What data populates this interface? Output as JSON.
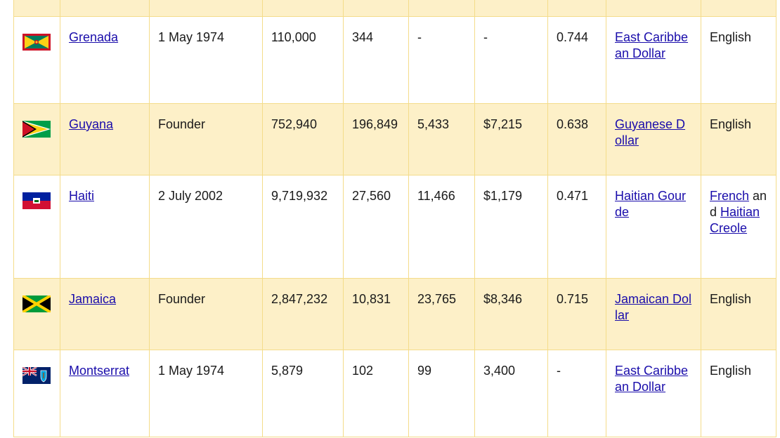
{
  "table": {
    "rows": [
      {
        "flag_icon": "grenada-flag-icon",
        "country": "Grenada",
        "joined": "1 May 1974",
        "population": "110,000",
        "area": "344",
        "col5": "-",
        "col6": "-",
        "hdi": "0.744",
        "currency": "East Caribbean Dollar",
        "language": "English"
      },
      {
        "flag_icon": "guyana-flag-icon",
        "country": "Guyana",
        "joined": "Founder",
        "population": "752,940",
        "area": "196,849",
        "col5": "5,433",
        "col6": "$7,215",
        "hdi": "0.638",
        "currency": "Guyanese Dollar",
        "language": "English"
      },
      {
        "flag_icon": "haiti-flag-icon",
        "country": "Haiti",
        "joined": "2 July 2002",
        "population": "9,719,932",
        "area": "27,560",
        "col5": "11,466",
        "col6": "$1,179",
        "hdi": "0.471",
        "currency": "Haitian Gourde",
        "language_link1": "French",
        "language_sep": " and ",
        "language_link2": "Haitian Creole"
      },
      {
        "flag_icon": "jamaica-flag-icon",
        "country": "Jamaica",
        "joined": "Founder",
        "population": "2,847,232",
        "area": "10,831",
        "col5": "23,765",
        "col6": "$8,346",
        "hdi": "0.715",
        "currency": "Jamaican Dollar",
        "language": "English"
      },
      {
        "flag_icon": "montserrat-flag-icon",
        "country": "Montserrat",
        "joined": "1 May 1974",
        "population": "5,879",
        "area": "102",
        "col5": "99",
        "col6": "3,400",
        "hdi": "-",
        "currency": "East Caribbean Dollar",
        "language": "English"
      }
    ]
  },
  "colors": {
    "row_alt": "#fdf0c8",
    "border": "#f4dc8a",
    "link": "#1a0dab"
  }
}
